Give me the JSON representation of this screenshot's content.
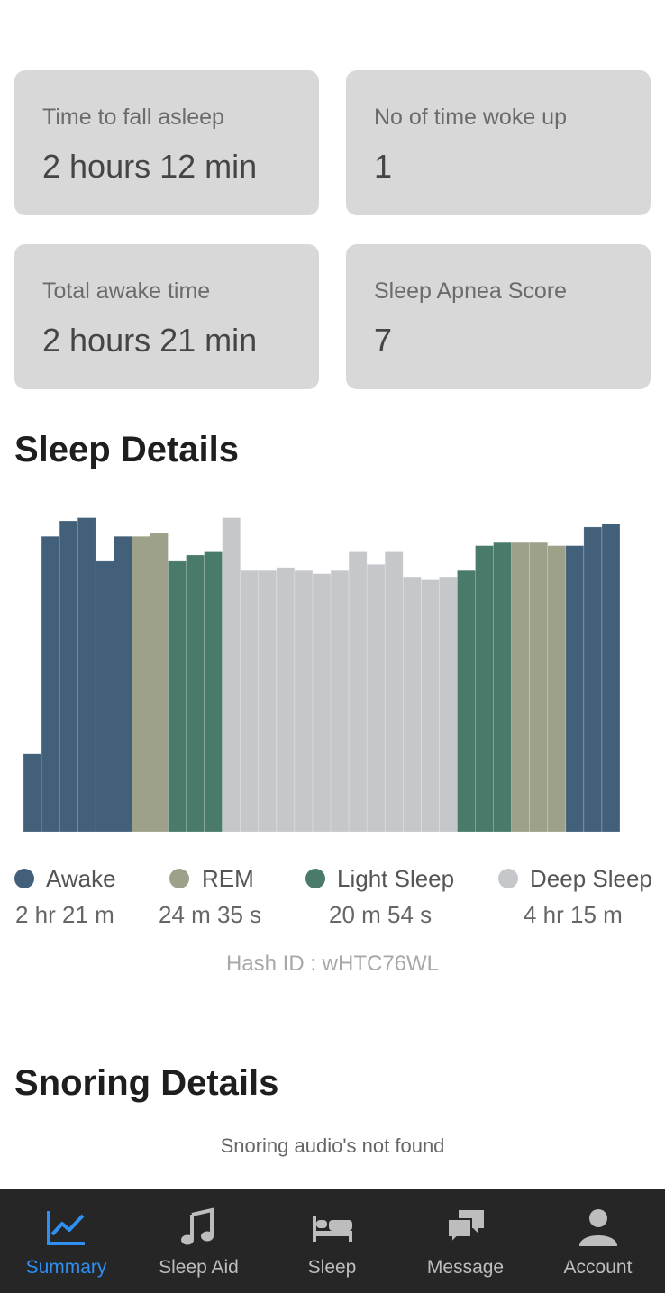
{
  "stats": [
    {
      "label": "Time to fall asleep",
      "value": "2 hours 12 min"
    },
    {
      "label": "No of time woke up",
      "value": "1"
    },
    {
      "label": "Total awake time",
      "value": "2 hours 21 min"
    },
    {
      "label": "Sleep Apnea Score",
      "value": "7"
    }
  ],
  "sleep_details": {
    "title": "Sleep Details"
  },
  "colors": {
    "awake": "#43607a",
    "rem": "#9da18a",
    "light": "#4a7a6a",
    "deep": "#c5c7cb",
    "accent": "#2f8ff2"
  },
  "chart_data": {
    "type": "bar",
    "title": "",
    "xlabel": "",
    "ylabel": "",
    "ylim": [
      0,
      100
    ],
    "values": [
      25,
      95,
      100,
      101,
      87,
      95,
      95,
      96,
      87,
      89,
      90,
      101,
      84,
      84,
      85,
      84,
      83,
      84,
      90,
      86,
      90,
      82,
      81,
      82,
      84,
      92,
      93,
      93,
      93,
      92,
      92,
      98,
      99
    ],
    "stages": [
      "awake",
      "awake",
      "awake",
      "awake",
      "awake",
      "awake",
      "rem",
      "rem",
      "light",
      "light",
      "light",
      "deep",
      "deep",
      "deep",
      "deep",
      "deep",
      "deep",
      "deep",
      "deep",
      "deep",
      "deep",
      "deep",
      "deep",
      "deep",
      "light",
      "light",
      "light",
      "rem",
      "rem",
      "rem",
      "awake",
      "awake",
      "awake"
    ]
  },
  "legend": [
    {
      "key": "awake",
      "name": "Awake",
      "duration": "2 hr 21 m"
    },
    {
      "key": "rem",
      "name": "REM",
      "duration": "24 m 35 s"
    },
    {
      "key": "light",
      "name": "Light Sleep",
      "duration": "20 m 54 s"
    },
    {
      "key": "deep",
      "name": "Deep Sleep",
      "duration": "4 hr 15 m"
    }
  ],
  "hash_id": "Hash ID : wHTC76WL",
  "snoring": {
    "title": "Snoring Details",
    "message": "Snoring audio's not found"
  },
  "nav": [
    {
      "label": "Summary",
      "icon": "chart-line-icon",
      "active": true
    },
    {
      "label": "Sleep Aid",
      "icon": "music-note-icon"
    },
    {
      "label": "Sleep",
      "icon": "bed-icon"
    },
    {
      "label": "Message",
      "icon": "chat-bubbles-icon"
    },
    {
      "label": "Account",
      "icon": "person-icon"
    }
  ]
}
